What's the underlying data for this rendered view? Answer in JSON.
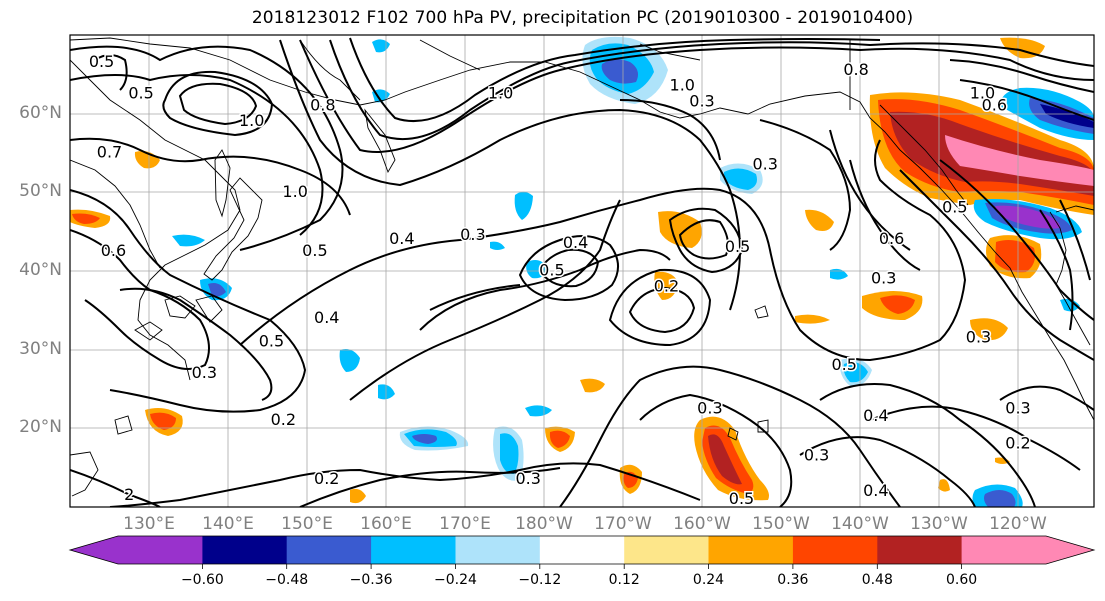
{
  "title": "2018123012 F102 700 hPa PV, precipitation PC (2019010300 - 2019010400)",
  "latitude_labels": [
    "60°N",
    "50°N",
    "40°N",
    "30°N",
    "20°N"
  ],
  "longitude_labels": [
    "130°E",
    "140°E",
    "150°E",
    "160°E",
    "170°E",
    "180°W",
    "170°W",
    "160°W",
    "150°W",
    "140°W",
    "130°W",
    "120°W"
  ],
  "colorbar": {
    "tick_labels": [
      "−0.60",
      "−0.48",
      "−0.36",
      "−0.24",
      "−0.12",
      "0.12",
      "0.24",
      "0.36",
      "0.48",
      "0.60"
    ],
    "colors": [
      "#9932cc",
      "#00008b",
      "#3a5bd0",
      "#00bfff",
      "#aee3fa",
      "#ffffff",
      "#fde68a",
      "#ffa500",
      "#ff4500",
      "#b22222",
      "#ff88b4"
    ]
  },
  "contour_labels": [
    {
      "text": "0.5",
      "lon": 124,
      "lat": 66.5
    },
    {
      "text": "0.5",
      "lon": 129,
      "lat": 62.5
    },
    {
      "text": "0.7",
      "lon": 125,
      "lat": 55
    },
    {
      "text": "1.0",
      "lon": 143,
      "lat": 59
    },
    {
      "text": "0.8",
      "lon": 152,
      "lat": 61
    },
    {
      "text": "1.0",
      "lon": 174.5,
      "lat": 62.5
    },
    {
      "text": "1.0",
      "lon": -162.5,
      "lat": 63.5
    },
    {
      "text": "0.3",
      "lon": -160,
      "lat": 61.5
    },
    {
      "text": "0.8",
      "lon": -140.5,
      "lat": 65.5
    },
    {
      "text": "1.0",
      "lon": -124.5,
      "lat": 62.5
    },
    {
      "text": "0.6",
      "lon": -123,
      "lat": 61
    },
    {
      "text": "0.3",
      "lon": -152,
      "lat": 53.5
    },
    {
      "text": "1.0",
      "lon": 148.5,
      "lat": 50
    },
    {
      "text": "0.6",
      "lon": 125.5,
      "lat": 42.5
    },
    {
      "text": "0.5",
      "lon": 151,
      "lat": 42.5
    },
    {
      "text": "0.4",
      "lon": 162,
      "lat": 44
    },
    {
      "text": "0.3",
      "lon": 171,
      "lat": 44.5
    },
    {
      "text": "0.4",
      "lon": -176,
      "lat": 43.5
    },
    {
      "text": "0.5",
      "lon": -179,
      "lat": 40
    },
    {
      "text": "0.5",
      "lon": -155.5,
      "lat": 43
    },
    {
      "text": "0.5",
      "lon": -128,
      "lat": 48
    },
    {
      "text": "0.6",
      "lon": -136,
      "lat": 44
    },
    {
      "text": "0.3",
      "lon": -137,
      "lat": 39
    },
    {
      "text": "0.2",
      "lon": -164.5,
      "lat": 38
    },
    {
      "text": "0.4",
      "lon": 152.5,
      "lat": 34
    },
    {
      "text": "0.5",
      "lon": 145.5,
      "lat": 31
    },
    {
      "text": "0.3",
      "lon": 137,
      "lat": 27
    },
    {
      "text": "0.2",
      "lon": 147,
      "lat": 21
    },
    {
      "text": "0.3",
      "lon": -125,
      "lat": 31.5
    },
    {
      "text": "0.5",
      "lon": -142,
      "lat": 28
    },
    {
      "text": "0.4",
      "lon": -138,
      "lat": 21.5
    },
    {
      "text": "0.3",
      "lon": -120,
      "lat": 22.5
    },
    {
      "text": "0.2",
      "lon": -120,
      "lat": 18
    },
    {
      "text": "0.3",
      "lon": -159,
      "lat": 22.5
    },
    {
      "text": "0.3",
      "lon": -145.5,
      "lat": 16.5
    },
    {
      "text": "0.2",
      "lon": 152.5,
      "lat": 13.5
    },
    {
      "text": "0.3",
      "lon": 178,
      "lat": 13.5
    },
    {
      "text": "0.5",
      "lon": -155,
      "lat": 11
    },
    {
      "text": "0.4",
      "lon": -138,
      "lat": 12
    },
    {
      "text": "2",
      "lon": 127.5,
      "lat": 11.5
    }
  ]
}
